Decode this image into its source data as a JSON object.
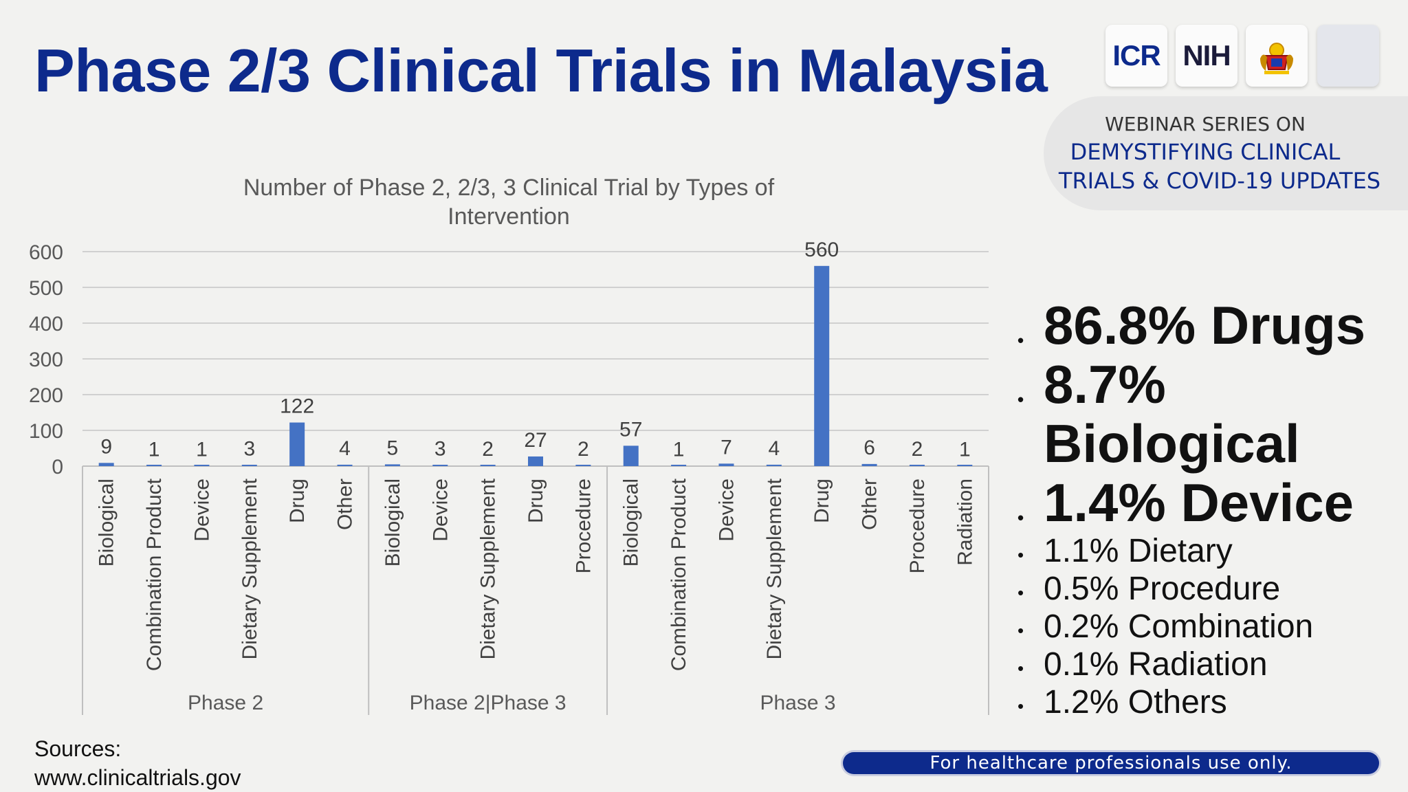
{
  "title": "Phase 2/3 Clinical Trials in Malaysia",
  "logos": [
    {
      "name": "icr-logo",
      "text": "ICR"
    },
    {
      "name": "nih-logo",
      "text": "NIH"
    },
    {
      "name": "moh-crest-logo",
      "text": ""
    },
    {
      "name": "blank-logo",
      "text": ""
    }
  ],
  "webinar": {
    "line1": "WEBINAR SERIES ON",
    "line2": "DEMYSTIFYING CLINICAL",
    "line3": "TRIALS & COVID-19 UPDATES"
  },
  "chart_data": {
    "type": "bar",
    "title": "Number of Phase 2, 2/3, 3 Clinical Trial by Types of Intervention",
    "title_lines": [
      "Number of Phase 2, 2/3, 3 Clinical Trial by Types of",
      "Intervention"
    ],
    "xlabel": "",
    "ylabel": "",
    "ylim": [
      0,
      600
    ],
    "yticks": [
      0,
      100,
      200,
      300,
      400,
      500,
      600
    ],
    "grid": true,
    "bar_color": "#4472c4",
    "groups": [
      {
        "name": "Phase 2",
        "categories": [
          "Biological",
          "Combination Product",
          "Device",
          "Dietary Supplement",
          "Drug",
          "Other"
        ],
        "values": [
          9,
          1,
          1,
          3,
          122,
          4
        ]
      },
      {
        "name": "Phase 2|Phase 3",
        "categories": [
          "Biological",
          "Device",
          "Dietary Supplement",
          "Drug",
          "Procedure"
        ],
        "values": [
          5,
          3,
          2,
          27,
          2
        ]
      },
      {
        "name": "Phase 3",
        "categories": [
          "Biological",
          "Combination Product",
          "Device",
          "Dietary Supplement",
          "Drug",
          "Other",
          "Procedure",
          "Radiation"
        ],
        "values": [
          57,
          1,
          7,
          4,
          560,
          6,
          2,
          1
        ]
      }
    ]
  },
  "bullets": [
    {
      "text": "86.8% Drugs",
      "size": "big"
    },
    {
      "text": "8.7% Biological",
      "size": "big"
    },
    {
      "text": "1.4% Device",
      "size": "big"
    },
    {
      "text": "1.1% Dietary",
      "size": "small"
    },
    {
      "text": "0.5% Procedure",
      "size": "small"
    },
    {
      "text": "0.2% Combination",
      "size": "small"
    },
    {
      "text": "0.1% Radiation",
      "size": "small"
    },
    {
      "text": "1.2% Others",
      "size": "small"
    }
  ],
  "sources": {
    "label": "Sources:",
    "url": "www.clinicaltrials.gov"
  },
  "footer": "For healthcare professionals use only."
}
